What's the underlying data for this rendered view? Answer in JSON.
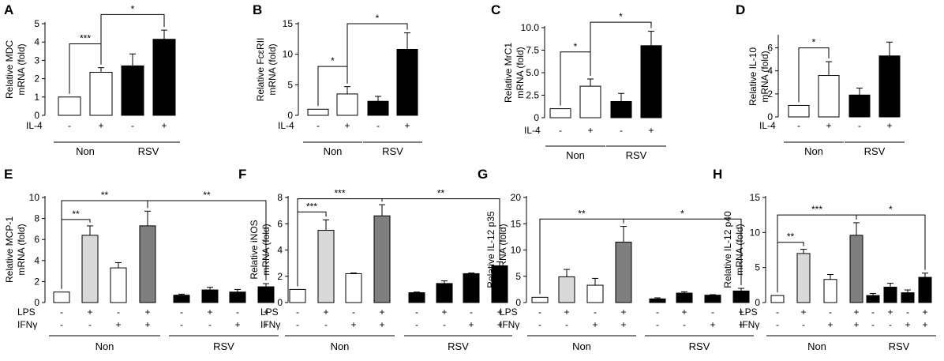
{
  "chart_data": [
    {
      "panel": "A",
      "type": "bar",
      "ylabel": [
        "Relative MDC",
        "mRNA (fold)"
      ],
      "yticks": [
        0,
        1,
        2,
        3,
        4,
        5
      ],
      "ylim": [
        0,
        5
      ],
      "treatment_rows": [
        {
          "name": "IL-4",
          "values": [
            "-",
            "+",
            "-",
            "+"
          ]
        }
      ],
      "groups": [
        {
          "label": "Non",
          "from": 0,
          "to": 1
        },
        {
          "label": "RSV",
          "from": 2,
          "to": 3
        }
      ],
      "bars": [
        {
          "value": 1.0,
          "error": 0,
          "color": "#ffffff"
        },
        {
          "value": 2.35,
          "error": 0.25,
          "color": "#ffffff"
        },
        {
          "value": 2.7,
          "error": 0.65,
          "color": "#000000"
        },
        {
          "value": 4.15,
          "error": 0.5,
          "color": "#000000"
        }
      ],
      "significance": [
        {
          "from": 0,
          "to": 1,
          "label": "***",
          "level": 3.9
        },
        {
          "from": 1,
          "to": 3,
          "label": "*",
          "level": 5.5
        }
      ]
    },
    {
      "panel": "B",
      "type": "bar",
      "ylabel": [
        "Relative FcεRII",
        "mRNA (fold)"
      ],
      "yticks": [
        0,
        5,
        10,
        15
      ],
      "ylim": [
        0,
        15
      ],
      "treatment_rows": [
        {
          "name": "IL-4",
          "values": [
            "-",
            "+",
            "-",
            "+"
          ]
        }
      ],
      "groups": [
        {
          "label": "Non",
          "from": 0,
          "to": 1
        },
        {
          "label": "RSV",
          "from": 2,
          "to": 3
        }
      ],
      "bars": [
        {
          "value": 1.0,
          "error": 0,
          "color": "#ffffff"
        },
        {
          "value": 3.5,
          "error": 1.2,
          "color": "#ffffff"
        },
        {
          "value": 2.3,
          "error": 0.8,
          "color": "#000000"
        },
        {
          "value": 10.8,
          "error": 2.7,
          "color": "#000000"
        }
      ],
      "significance": [
        {
          "from": 0,
          "to": 1,
          "label": "*",
          "level": 8.0
        },
        {
          "from": 1,
          "to": 3,
          "label": "*",
          "level": 15.0
        }
      ]
    },
    {
      "panel": "C",
      "type": "bar",
      "ylabel": [
        "Relative MrC1",
        "mRNA (fold)"
      ],
      "yticks": [
        "0",
        "2.5",
        "5.0",
        "7.5",
        "10.0"
      ],
      "ylim": [
        0,
        10
      ],
      "treatment_rows": [
        {
          "name": "IL-4",
          "values": [
            "-",
            "+",
            "-",
            "+"
          ]
        }
      ],
      "groups": [
        {
          "label": "Non",
          "from": 0,
          "to": 1
        },
        {
          "label": "RSV",
          "from": 2,
          "to": 3
        }
      ],
      "bars": [
        {
          "value": 1.0,
          "error": 0,
          "color": "#ffffff"
        },
        {
          "value": 3.5,
          "error": 0.8,
          "color": "#ffffff"
        },
        {
          "value": 1.8,
          "error": 0.9,
          "color": "#000000"
        },
        {
          "value": 8.0,
          "error": 1.6,
          "color": "#000000"
        }
      ],
      "significance": [
        {
          "from": 0,
          "to": 1,
          "label": "*",
          "level": 7.3
        },
        {
          "from": 1,
          "to": 3,
          "label": "*",
          "level": 10.6
        }
      ]
    },
    {
      "panel": "D",
      "type": "bar",
      "ylabel": [
        "Relative IL-10",
        "mRNA (fold)"
      ],
      "yticks": [
        0,
        2,
        4,
        6
      ],
      "ylim": [
        0,
        7
      ],
      "treatment_rows": [
        {
          "name": "IL-4",
          "values": [
            "-",
            "+",
            "-",
            "+"
          ]
        }
      ],
      "groups": [
        {
          "label": "Non",
          "from": 0,
          "to": 1
        },
        {
          "label": "RSV",
          "from": 2,
          "to": 3
        }
      ],
      "bars": [
        {
          "value": 1.0,
          "error": 0,
          "color": "#ffffff"
        },
        {
          "value": 3.6,
          "error": 1.2,
          "color": "#ffffff"
        },
        {
          "value": 1.9,
          "error": 0.6,
          "color": "#000000"
        },
        {
          "value": 5.3,
          "error": 1.2,
          "color": "#000000"
        }
      ],
      "significance": [
        {
          "from": 0,
          "to": 1,
          "label": "*",
          "level": 6.0
        }
      ]
    },
    {
      "panel": "E",
      "type": "bar",
      "ylabel": [
        "Relative MCP-1",
        "mRNA (fold)"
      ],
      "yticks": [
        0,
        2,
        4,
        6,
        8,
        10
      ],
      "ylim": [
        0,
        10
      ],
      "treatment_rows": [
        {
          "name": "LPS",
          "values": [
            "-",
            "+",
            "-",
            "+",
            "-",
            "+",
            "-",
            "+"
          ]
        },
        {
          "name": "IFNγ",
          "values": [
            "-",
            "-",
            "+",
            "+",
            "-",
            "-",
            "+",
            "+"
          ]
        }
      ],
      "groups": [
        {
          "label": "Non",
          "from": 0,
          "to": 3
        },
        {
          "label": "RSV",
          "from": 4,
          "to": 7
        }
      ],
      "bars": [
        {
          "value": 1.0,
          "error": 0,
          "color": "#ffffff"
        },
        {
          "value": 6.4,
          "error": 0.9,
          "color": "#d9d9d9"
        },
        {
          "value": 3.3,
          "error": 0.5,
          "color": "#ffffff"
        },
        {
          "value": 7.3,
          "error": 1.4,
          "color": "#7f7f7f"
        },
        {
          "value": 0.7,
          "error": 0.1,
          "color": "#000000"
        },
        {
          "value": 1.2,
          "error": 0.25,
          "color": "#000000"
        },
        {
          "value": 1.0,
          "error": 0.25,
          "color": "#000000"
        },
        {
          "value": 1.5,
          "error": 0.3,
          "color": "#000000"
        }
      ],
      "significance": [
        {
          "from": 0,
          "to": 1,
          "label": "**",
          "level": 7.9
        },
        {
          "from": 0,
          "to": 3,
          "label": "**",
          "level": 9.7
        },
        {
          "from": 3,
          "to": 7,
          "label": "**",
          "level": 9.7
        }
      ]
    },
    {
      "panel": "F",
      "type": "bar",
      "ylabel": [
        "Relative iNOS",
        "mRNA (fold)"
      ],
      "yticks": [
        0,
        2,
        4,
        6,
        8
      ],
      "ylim": [
        0,
        8
      ],
      "treatment_rows": [
        {
          "name": "LPS",
          "values": [
            "-",
            "+",
            "-",
            "+",
            "-",
            "+",
            "-",
            "+"
          ]
        },
        {
          "name": "IFNγ",
          "values": [
            "-",
            "-",
            "+",
            "+",
            "-",
            "-",
            "+",
            "+"
          ]
        }
      ],
      "groups": [
        {
          "label": "Non",
          "from": 0,
          "to": 3
        },
        {
          "label": "RSV",
          "from": 4,
          "to": 7
        }
      ],
      "bars": [
        {
          "value": 1.0,
          "error": 0,
          "color": "#ffffff"
        },
        {
          "value": 5.5,
          "error": 0.8,
          "color": "#d9d9d9"
        },
        {
          "value": 2.2,
          "error": 0.05,
          "color": "#ffffff"
        },
        {
          "value": 6.6,
          "error": 0.85,
          "color": "#7f7f7f"
        },
        {
          "value": 0.75,
          "error": 0.05,
          "color": "#000000"
        },
        {
          "value": 1.45,
          "error": 0.2,
          "color": "#000000"
        },
        {
          "value": 2.2,
          "error": 0.05,
          "color": "#000000"
        },
        {
          "value": 2.8,
          "error": 0.3,
          "color": "#000000"
        }
      ],
      "significance": [
        {
          "from": 0,
          "to": 1,
          "label": "***",
          "level": 6.9
        },
        {
          "from": 0,
          "to": 3,
          "label": "***",
          "level": 7.9
        },
        {
          "from": 3,
          "to": 7,
          "label": "**",
          "level": 7.9
        }
      ]
    },
    {
      "panel": "G",
      "type": "bar",
      "ylabel": [
        "Relative IL-12 p35",
        "mRNA (fold)"
      ],
      "yticks": [
        0,
        5,
        10,
        15,
        20
      ],
      "ylim": [
        0,
        20
      ],
      "treatment_rows": [
        {
          "name": "LPS",
          "values": [
            "-",
            "+",
            "-",
            "+",
            "-",
            "+",
            "-",
            "+"
          ]
        },
        {
          "name": "IFNγ",
          "values": [
            "-",
            "-",
            "+",
            "+",
            "-",
            "-",
            "+",
            "+"
          ]
        }
      ],
      "groups": [
        {
          "label": "Non",
          "from": 0,
          "to": 3
        },
        {
          "label": "RSV",
          "from": 4,
          "to": 7
        }
      ],
      "bars": [
        {
          "value": 1.0,
          "error": 0,
          "color": "#ffffff"
        },
        {
          "value": 4.9,
          "error": 1.4,
          "color": "#d9d9d9"
        },
        {
          "value": 3.3,
          "error": 1.3,
          "color": "#ffffff"
        },
        {
          "value": 11.5,
          "error": 3.0,
          "color": "#7f7f7f"
        },
        {
          "value": 0.7,
          "error": 0.2,
          "color": "#000000"
        },
        {
          "value": 1.8,
          "error": 0.25,
          "color": "#000000"
        },
        {
          "value": 1.4,
          "error": 0.1,
          "color": "#000000"
        },
        {
          "value": 2.2,
          "error": 0.5,
          "color": "#000000"
        }
      ],
      "significance": [
        {
          "from": 0,
          "to": 3,
          "label": "**",
          "level": 15.9
        },
        {
          "from": 3,
          "to": 7,
          "label": "*",
          "level": 15.9
        }
      ]
    },
    {
      "panel": "H",
      "type": "bar",
      "ylabel": [
        "Relative IL-12 p40",
        "mRNA (fold)"
      ],
      "yticks": [
        0,
        5,
        10,
        15
      ],
      "ylim": [
        0,
        15
      ],
      "treatment_rows": [
        {
          "name": "LPS",
          "values": [
            "-",
            "+",
            "-",
            "+",
            "-",
            "+",
            "-",
            "+"
          ]
        },
        {
          "name": "IFNγ",
          "values": [
            "-",
            "-",
            "+",
            "+",
            "-",
            "-",
            "+",
            "+"
          ]
        }
      ],
      "groups": [
        {
          "label": "Non",
          "from": 0,
          "to": 3
        },
        {
          "label": "RSV",
          "from": 4,
          "to": 7
        }
      ],
      "bars": [
        {
          "value": 1.0,
          "error": 0,
          "color": "#ffffff"
        },
        {
          "value": 7.0,
          "error": 0.6,
          "color": "#d9d9d9"
        },
        {
          "value": 3.3,
          "error": 0.7,
          "color": "#ffffff"
        },
        {
          "value": 9.6,
          "error": 1.8,
          "color": "#7f7f7f"
        },
        {
          "value": 1.0,
          "error": 0.3,
          "color": "#000000"
        },
        {
          "value": 2.2,
          "error": 0.55,
          "color": "#000000"
        },
        {
          "value": 1.4,
          "error": 0.4,
          "color": "#000000"
        },
        {
          "value": 3.6,
          "error": 0.6,
          "color": "#000000"
        }
      ],
      "significance": [
        {
          "from": 0,
          "to": 1,
          "label": "**",
          "level": 8.6
        },
        {
          "from": 0,
          "to": 3,
          "label": "***",
          "level": 12.5
        },
        {
          "from": 3,
          "to": 7,
          "label": "*",
          "level": 12.5
        }
      ]
    }
  ]
}
